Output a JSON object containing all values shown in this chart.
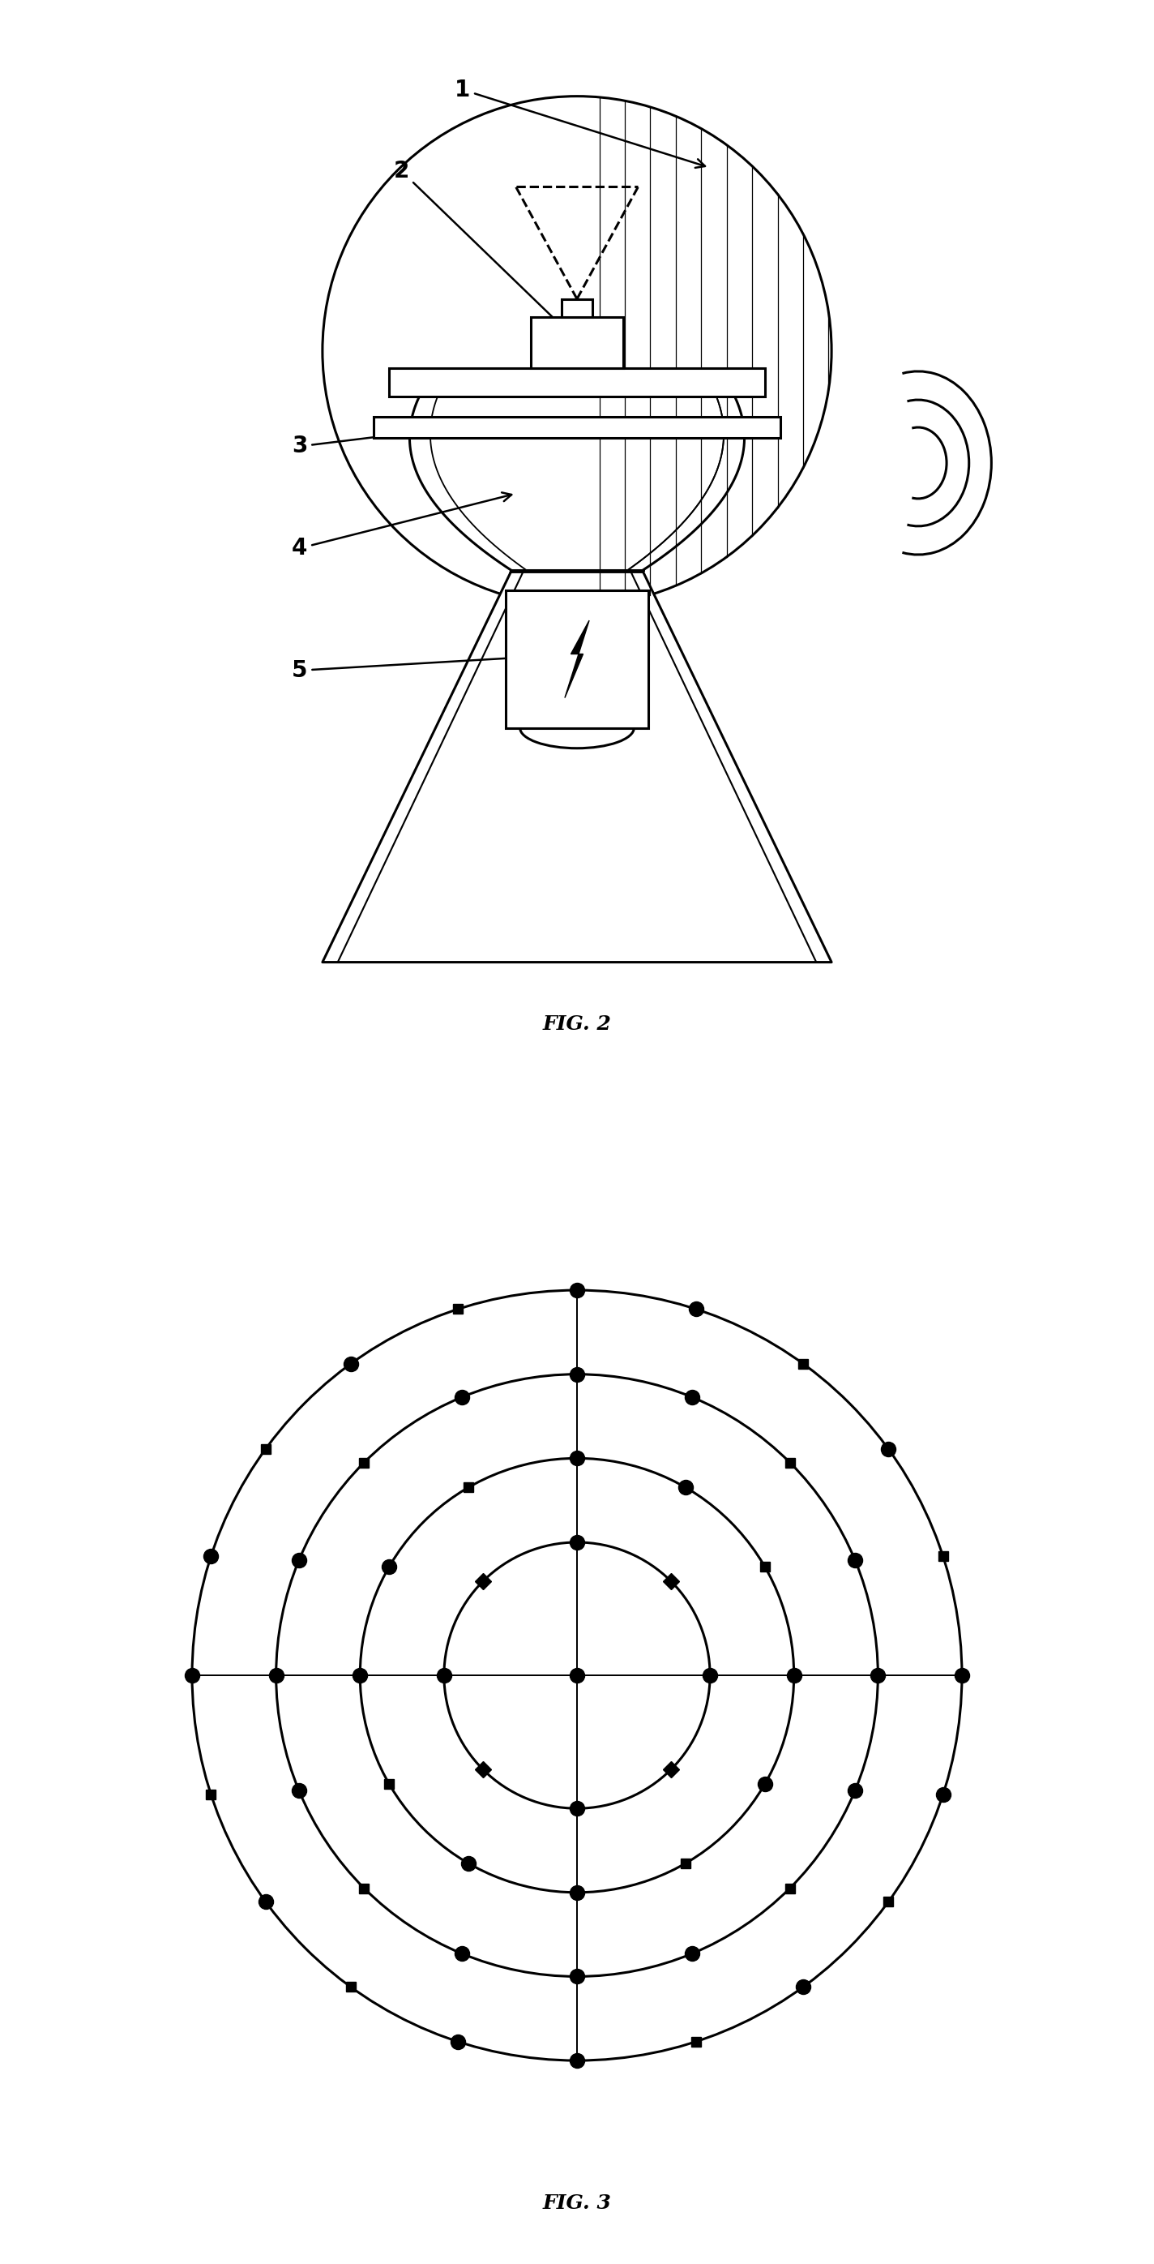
{
  "fig_width": 14.24,
  "fig_height": 27.92,
  "bg_color": "#ffffff",
  "fig2_label": "FIG. 2",
  "fig3_label": "FIG. 3",
  "circles_radii": [
    0.38,
    0.62,
    0.86,
    1.1
  ],
  "lw": 2.2
}
